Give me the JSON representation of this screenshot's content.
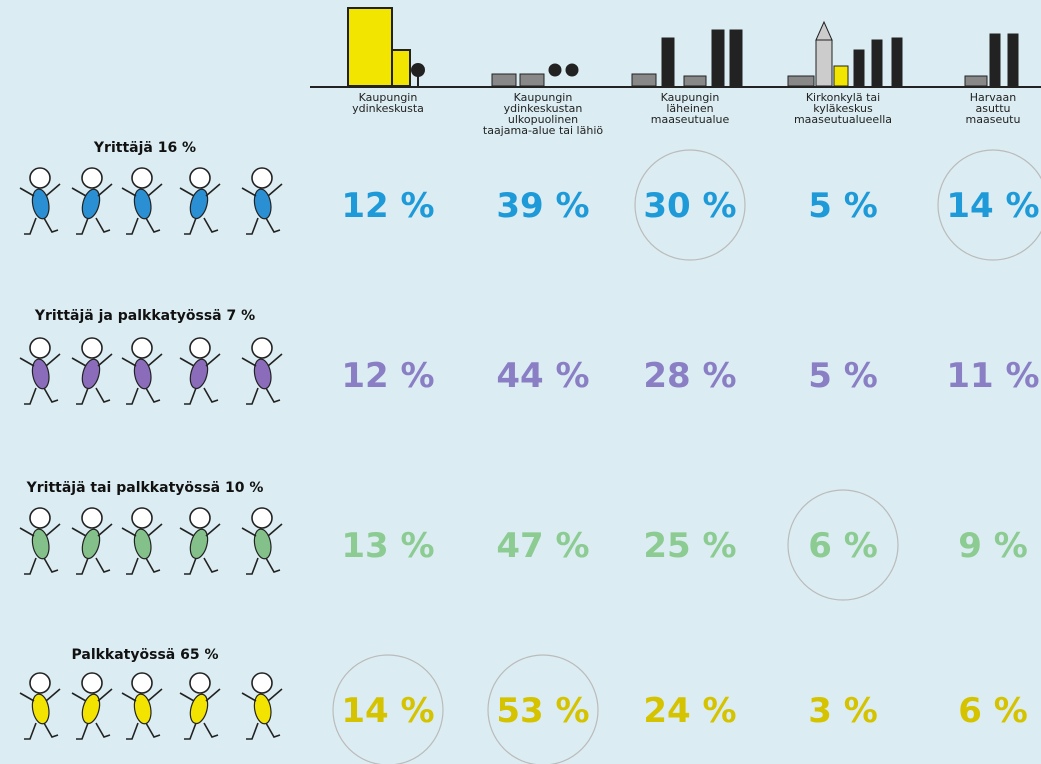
{
  "columns": [
    [
      "Kaupungin",
      "ydinkeskusta"
    ],
    [
      "Kaupungin",
      "ydinkeskustan",
      "ulkopuolinen",
      "taajama-alue tai lähiö"
    ],
    [
      "Kaupungin",
      "läheinen",
      "maaseutualue"
    ],
    [
      "Kirkonkylä tai",
      "kyläkeskus",
      "maaseutualueella"
    ],
    [
      "Harvaan",
      "asuttu",
      "maaseutu"
    ]
  ],
  "rows": [
    {
      "label": "Yrittäjä 16 %",
      "color": "#1e9ad9",
      "body": "#2b8fd3",
      "values": [
        "12 %",
        "39 %",
        "30 %",
        "5 %",
        "14 %"
      ]
    },
    {
      "label": "Yrittäjä ja palkkatyössä 7 %",
      "color": "#8a7fc4",
      "body": "#8a6cba",
      "values": [
        "12 %",
        "44 %",
        "28 %",
        "5 %",
        "11 %"
      ]
    },
    {
      "label": "Yrittäjä tai palkkatyössä 10 %",
      "color": "#8ccb92",
      "body": "#84c18a",
      "values": [
        "13 %",
        "47 %",
        "25 %",
        "6 %",
        "9 %"
      ]
    },
    {
      "label": "Palkkatyössä 65 %",
      "color": "#d5c300",
      "body": "#f2e400",
      "values": [
        "14 %",
        "53 %",
        "24 %",
        "3 %",
        "6 %"
      ]
    }
  ]
}
